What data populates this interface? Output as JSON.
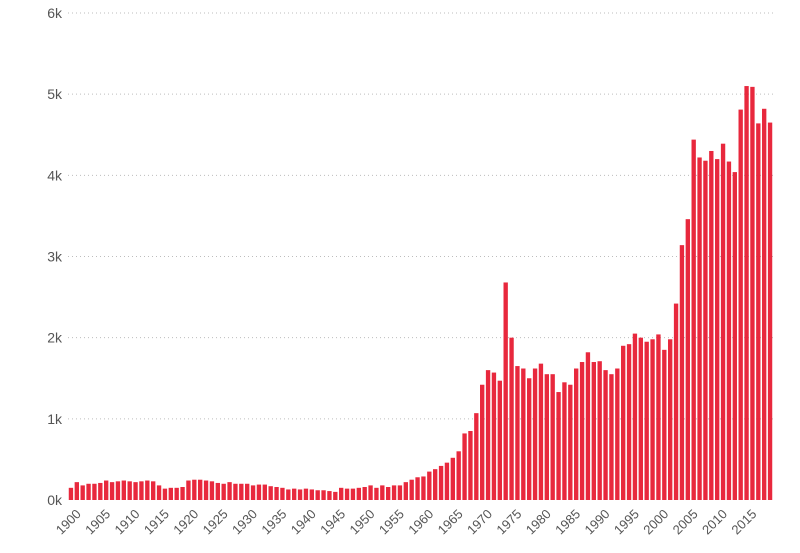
{
  "chart_data": {
    "type": "bar",
    "title": "",
    "xlabel": "",
    "ylabel": "",
    "grid": true,
    "bar_color": "#e8283d",
    "ylim": [
      0,
      6000
    ],
    "y_ticks": [
      {
        "value": 0,
        "label": "0k"
      },
      {
        "value": 1000,
        "label": "1k"
      },
      {
        "value": 2000,
        "label": "2k"
      },
      {
        "value": 3000,
        "label": "3k"
      },
      {
        "value": 4000,
        "label": "4k"
      },
      {
        "value": 5000,
        "label": "5k"
      },
      {
        "value": 6000,
        "label": "6k"
      }
    ],
    "x_ticks": [
      "1900",
      "1905",
      "1910",
      "1915",
      "1920",
      "1925",
      "1930",
      "1935",
      "1940",
      "1945",
      "1950",
      "1955",
      "1960",
      "1965",
      "1970",
      "1975",
      "1980",
      "1985",
      "1990",
      "1995",
      "2000",
      "2005",
      "2010",
      "2015"
    ],
    "categories": [
      1900,
      1901,
      1902,
      1903,
      1904,
      1905,
      1906,
      1907,
      1908,
      1909,
      1910,
      1911,
      1912,
      1913,
      1914,
      1915,
      1916,
      1917,
      1918,
      1919,
      1920,
      1921,
      1922,
      1923,
      1924,
      1925,
      1926,
      1927,
      1928,
      1929,
      1930,
      1931,
      1932,
      1933,
      1934,
      1935,
      1936,
      1937,
      1938,
      1939,
      1940,
      1941,
      1942,
      1943,
      1944,
      1945,
      1946,
      1947,
      1948,
      1949,
      1950,
      1951,
      1952,
      1953,
      1954,
      1955,
      1956,
      1957,
      1958,
      1959,
      1960,
      1961,
      1962,
      1963,
      1964,
      1965,
      1966,
      1967,
      1968,
      1969,
      1970,
      1971,
      1972,
      1973,
      1974,
      1975,
      1976,
      1977,
      1978,
      1979,
      1980,
      1981,
      1982,
      1983,
      1984,
      1985,
      1986,
      1987,
      1988,
      1989,
      1990,
      1991,
      1992,
      1993,
      1994,
      1995,
      1996,
      1997,
      1998,
      1999,
      2000,
      2001,
      2002,
      2003,
      2004,
      2005,
      2006,
      2007,
      2008,
      2009,
      2010,
      2011,
      2012,
      2013,
      2014,
      2015,
      2016,
      2017,
      2018,
      2019
    ],
    "values": [
      150,
      220,
      180,
      200,
      200,
      210,
      240,
      220,
      230,
      240,
      230,
      220,
      230,
      240,
      230,
      180,
      140,
      150,
      150,
      160,
      240,
      250,
      250,
      240,
      230,
      210,
      200,
      220,
      200,
      200,
      200,
      180,
      190,
      190,
      170,
      160,
      150,
      130,
      140,
      130,
      140,
      130,
      120,
      120,
      110,
      100,
      150,
      140,
      140,
      150,
      160,
      180,
      150,
      180,
      160,
      180,
      180,
      220,
      250,
      280,
      290,
      350,
      380,
      420,
      460,
      520,
      600,
      820,
      850,
      1070,
      1420,
      1600,
      1570,
      1470,
      2680,
      2000,
      1650,
      1620,
      1500,
      1620,
      1680,
      1550,
      1550,
      1330,
      1450,
      1420,
      1620,
      1700,
      1820,
      1700,
      1710,
      1600,
      1550,
      1620,
      1900,
      1920,
      2050,
      2000,
      1950,
      1980,
      2040,
      1850,
      1980,
      2420,
      3140,
      3460,
      4440,
      4220,
      4180,
      4300,
      4200,
      4390,
      4170,
      4040,
      4810,
      5100,
      5090,
      4640,
      4820,
      4650
    ]
  }
}
